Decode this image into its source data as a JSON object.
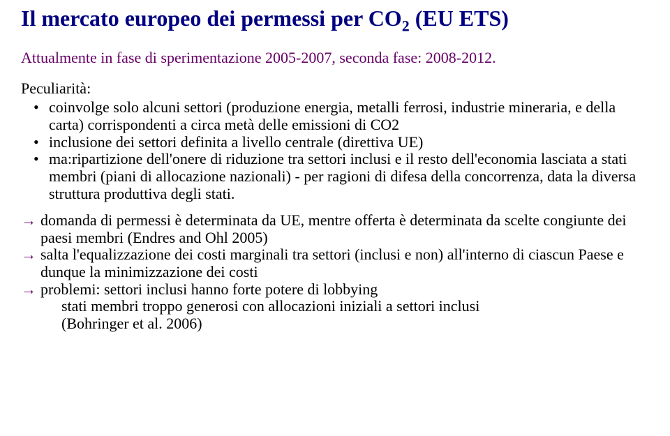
{
  "title": {
    "prefix": "Il mercato europeo dei permessi per CO",
    "subscript": "2",
    "suffix": " (EU ETS)"
  },
  "subtitle": "Attualmente in fase di sperimentazione 2005-2007, seconda fase: 2008-2012.",
  "pec_heading": "Peculiarità:",
  "bullets": [
    "coinvolge solo alcuni settori (produzione energia, metalli ferrosi, industrie mineraria, e della carta) corrispondenti a circa metà delle emissioni di CO2",
    "inclusione dei settori definita a livello centrale (direttiva UE)",
    "ma:ripartizione dell'onere di riduzione tra settori inclusi e il resto dell'economia lasciata a stati membri (piani di allocazione nazionali) - per ragioni di difesa della concorrenza, data la diversa struttura produttiva degli stati."
  ],
  "arrows": {
    "a0": "domanda di permessi è determinata da UE, mentre offerta è determinata da scelte congiunte dei paesi membri (Endres and Ohl 2005)",
    "a1": "salta l'equalizzazione dei costi marginali tra settori (inclusi e non) all'interno di ciascun Paese e dunque la minimizzazione dei costi",
    "a2": "problemi: settori inclusi hanno forte potere di lobbying",
    "a2_cont1": "stati membri troppo generosi con allocazioni iniziali a settori inclusi",
    "a2_cont2": "(Bohringer et al. 2006)"
  },
  "colors": {
    "title": "#000080",
    "accent": "#660066",
    "text": "#000000",
    "bg": "#ffffff"
  }
}
